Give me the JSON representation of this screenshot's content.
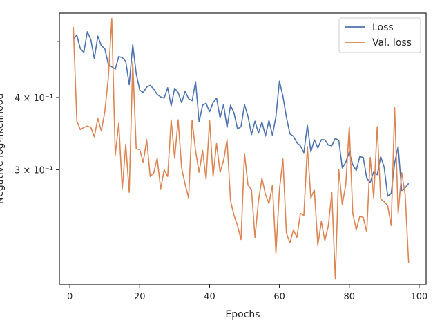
{
  "chart_data": {
    "type": "line",
    "xlabel": "Epochs",
    "ylabel": "Negative log-likelihood",
    "yscale": "log",
    "xlim": [
      -3,
      102
    ],
    "ylim": [
      0.19,
      0.56
    ],
    "x_ticks": [
      0,
      20,
      40,
      60,
      80,
      100
    ],
    "x_tick_labels": [
      "0",
      "20",
      "40",
      "60",
      "80",
      "100"
    ],
    "y_ticks": [
      0.3,
      0.4
    ],
    "y_tick_labels": [
      "3 × 10⁻¹",
      "4 × 10⁻¹"
    ],
    "y_minor_ticks": [
      0.5
    ],
    "legend_position": "top-right",
    "grid": false,
    "series": [
      {
        "name": "Loss",
        "color": "#4c72b0",
        "x": [
          1,
          2,
          3,
          4,
          5,
          6,
          7,
          8,
          9,
          10,
          11,
          12,
          13,
          14,
          15,
          16,
          17,
          18,
          19,
          20,
          21,
          22,
          23,
          24,
          25,
          26,
          27,
          28,
          29,
          30,
          31,
          32,
          33,
          34,
          35,
          36,
          37,
          38,
          39,
          40,
          41,
          42,
          43,
          44,
          45,
          46,
          47,
          48,
          49,
          50,
          51,
          52,
          53,
          54,
          55,
          56,
          57,
          58,
          59,
          60,
          61,
          62,
          63,
          64,
          65,
          66,
          67,
          68,
          69,
          70,
          71,
          72,
          73,
          74,
          75,
          76,
          77,
          78,
          79,
          80,
          81,
          82,
          83,
          84,
          85,
          86,
          87,
          88,
          89,
          90,
          91,
          92,
          93,
          94,
          95,
          96,
          97
        ],
        "values": [
          0.505,
          0.513,
          0.486,
          0.479,
          0.52,
          0.504,
          0.467,
          0.511,
          0.492,
          0.486,
          0.457,
          0.452,
          0.448,
          0.471,
          0.469,
          0.462,
          0.421,
          0.494,
          0.44,
          0.412,
          0.408,
          0.417,
          0.42,
          0.414,
          0.405,
          0.401,
          0.399,
          0.416,
          0.387,
          0.415,
          0.408,
          0.392,
          0.41,
          0.398,
          0.395,
          0.426,
          0.363,
          0.388,
          0.391,
          0.378,
          0.392,
          0.399,
          0.369,
          0.389,
          0.355,
          0.388,
          0.376,
          0.353,
          0.356,
          0.389,
          0.371,
          0.345,
          0.364,
          0.347,
          0.363,
          0.343,
          0.365,
          0.344,
          0.371,
          0.427,
          0.402,
          0.37,
          0.346,
          0.343,
          0.334,
          0.33,
          0.321,
          0.358,
          0.322,
          0.338,
          0.327,
          0.338,
          0.338,
          0.331,
          0.33,
          0.34,
          0.337,
          0.302,
          0.309,
          0.322,
          0.306,
          0.299,
          0.316,
          0.315,
          0.29,
          0.285,
          0.298,
          0.294,
          0.316,
          0.303,
          0.27,
          0.273,
          0.308,
          0.329,
          0.276,
          0.279,
          0.284
        ]
      },
      {
        "name": "Val. loss",
        "color": "#dd8452",
        "x": [
          1,
          2,
          3,
          4,
          5,
          6,
          7,
          8,
          9,
          10,
          11,
          12,
          13,
          14,
          15,
          16,
          17,
          18,
          19,
          20,
          21,
          22,
          23,
          24,
          25,
          26,
          27,
          28,
          29,
          30,
          31,
          32,
          33,
          34,
          35,
          36,
          37,
          38,
          39,
          40,
          41,
          42,
          43,
          44,
          45,
          46,
          47,
          48,
          49,
          50,
          51,
          52,
          53,
          54,
          55,
          56,
          57,
          58,
          59,
          60,
          61,
          62,
          63,
          64,
          65,
          66,
          67,
          68,
          69,
          70,
          71,
          72,
          73,
          74,
          75,
          76,
          77,
          78,
          79,
          80,
          81,
          82,
          83,
          84,
          85,
          86,
          87,
          88,
          89,
          90,
          91,
          92,
          93,
          94,
          95,
          96,
          97
        ],
        "values": [
          0.53,
          0.364,
          0.352,
          0.355,
          0.357,
          0.355,
          0.342,
          0.368,
          0.35,
          0.378,
          0.432,
          0.548,
          0.318,
          0.361,
          0.278,
          0.332,
          0.274,
          0.462,
          0.326,
          0.325,
          0.309,
          0.338,
          0.292,
          0.296,
          0.314,
          0.278,
          0.3,
          0.292,
          0.366,
          0.314,
          0.366,
          0.302,
          0.283,
          0.268,
          0.365,
          0.323,
          0.297,
          0.324,
          0.289,
          0.365,
          0.292,
          0.333,
          0.297,
          0.311,
          0.338,
          0.265,
          0.25,
          0.24,
          0.227,
          0.32,
          0.282,
          0.277,
          0.229,
          0.265,
          0.29,
          0.272,
          0.262,
          0.282,
          0.215,
          0.277,
          0.313,
          0.233,
          0.224,
          0.236,
          0.229,
          0.252,
          0.25,
          0.329,
          0.268,
          0.277,
          0.222,
          0.244,
          0.226,
          0.24,
          0.274,
          0.194,
          0.3,
          0.261,
          0.283,
          0.356,
          0.252,
          0.236,
          0.249,
          0.248,
          0.234,
          0.315,
          0.268,
          0.356,
          0.267,
          0.264,
          0.26,
          0.24,
          0.384,
          0.252,
          0.297,
          0.272,
          0.207
        ]
      }
    ]
  }
}
